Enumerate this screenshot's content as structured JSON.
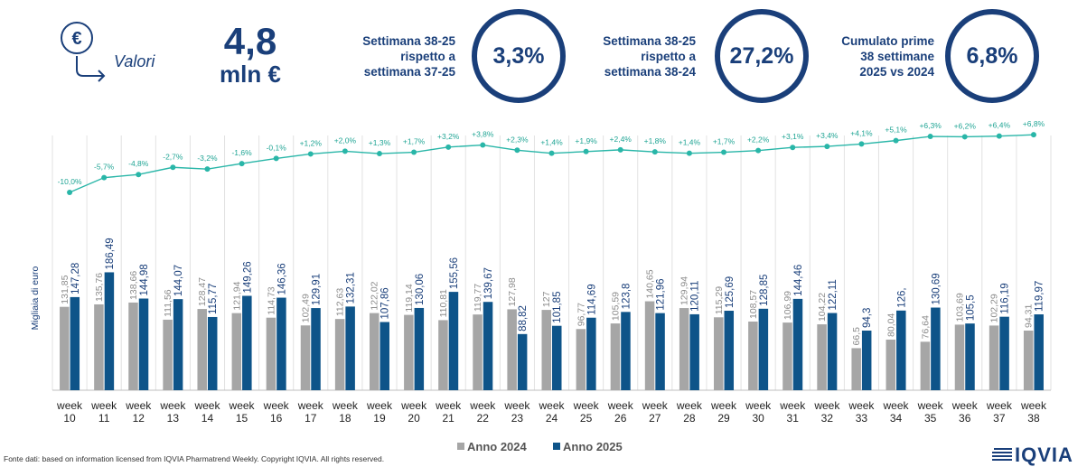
{
  "header": {
    "icon": "euro-down-arrow-icon",
    "valori_label": "Valori",
    "big_value": "4,8",
    "big_unit": "mln €",
    "kpis": [
      {
        "label_lines": [
          "Settimana 38-25",
          "rispetto a",
          "settimana 37-25"
        ],
        "value": "3,3%"
      },
      {
        "label_lines": [
          "Settimana 38-25",
          "rispetto a",
          "settimana 38-24"
        ],
        "value": "27,2%"
      },
      {
        "label_lines": [
          "Cumulato prime",
          "38 settimane",
          "2025 vs 2024"
        ],
        "value": "6,8%"
      }
    ]
  },
  "colors": {
    "primary": "#1a3f7a",
    "bar2024": "#a6a6a6",
    "bar2025": "#0e5489",
    "line": "#29b6a8",
    "line_label": "#21a595"
  },
  "chart_data": {
    "type": "bar",
    "ylabel": "Migliaia di euro",
    "categories": [
      "week\n10",
      "week\n11",
      "week\n12",
      "week\n13",
      "week\n14",
      "week\n15",
      "week\n16",
      "week\n17",
      "week\n18",
      "week\n19",
      "week\n20",
      "week\n21",
      "week\n22",
      "week\n23",
      "week\n24",
      "week\n25",
      "week\n26",
      "week\n27",
      "week\n28",
      "week\n29",
      "week\n30",
      "week\n31",
      "week\n32",
      "week\n33",
      "week\n34",
      "week\n35",
      "week\n36",
      "week\n37",
      "week\n38"
    ],
    "series": [
      {
        "name": "Anno 2024",
        "color": "#a6a6a6",
        "values": [
          131.85,
          135.76,
          138.66,
          111.56,
          128.47,
          121.94,
          114.73,
          102.49,
          112.63,
          122.02,
          119.14,
          110.81,
          119.77,
          127.98,
          127,
          96.77,
          105.59,
          140.65,
          129.94,
          115.29,
          108.57,
          106.99,
          104.22,
          66.5,
          80.04,
          76.64,
          103.69,
          102.29,
          94.31
        ],
        "labels": [
          "131,85",
          "135,76",
          "138,66",
          "111,56",
          "128,47",
          "121,94",
          "114,73",
          "102,49",
          "112,63",
          "122,02",
          "119,14",
          "110,81",
          "119,77",
          "127,98",
          "127",
          "96,77",
          "105,59",
          "140,65",
          "129,94",
          "115,29",
          "108,57",
          "106,99",
          "104,22",
          "66,5",
          "80,04",
          "76,64",
          "103,69",
          "102,29",
          "94,31"
        ]
      },
      {
        "name": "Anno 2025",
        "color": "#0e5489",
        "values": [
          147.28,
          186.49,
          144.98,
          144.07,
          115.77,
          149.26,
          146.36,
          129.91,
          132.31,
          107.86,
          130.06,
          155.56,
          139.67,
          88.82,
          101.85,
          114.69,
          123.8,
          121.96,
          120.11,
          125.69,
          128.85,
          144.46,
          122.11,
          94.3,
          126,
          130.69,
          105.5,
          116.19,
          119.97
        ],
        "labels": [
          "147,28",
          "186,49",
          "144,98",
          "144,07",
          "115,77",
          "149,26",
          "146,36",
          "129,91",
          "132,31",
          "107,86",
          "130,06",
          "155,56",
          "139,67",
          "88,82",
          "101,85",
          "114,69",
          "123,8",
          "121,96",
          "120,11",
          "125,69",
          "128,85",
          "144,46",
          "122,11",
          "94,3",
          "126,",
          "130,69",
          "105,5",
          "116,19",
          "119,97"
        ]
      }
    ],
    "cumulative_growth": {
      "values": [
        -10.0,
        -5.7,
        -4.8,
        -2.7,
        -3.2,
        -1.6,
        -0.1,
        1.2,
        2.0,
        1.3,
        1.7,
        3.2,
        3.8,
        2.3,
        1.4,
        1.9,
        2.4,
        1.8,
        1.4,
        1.7,
        2.2,
        3.1,
        3.4,
        4.1,
        5.1,
        6.3,
        6.2,
        6.4,
        6.8
      ],
      "labels": [
        "-10,0%",
        "-5,7%",
        "-4,8%",
        "-2,7%",
        "-3,2%",
        "-1,6%",
        "-0,1%",
        "+1,2%",
        "+2,0%",
        "+1,3%",
        "+1,7%",
        "+3,2%",
        "+3,8%",
        "+2,3%",
        "+1,4%",
        "+1,9%",
        "+2,4%",
        "+1,8%",
        "+1,4%",
        "+1,7%",
        "+2,2%",
        "+3,1%",
        "+3,4%",
        "+4,1%",
        "+5,1%",
        "+6,3%",
        "+6,2%",
        "+6,4%",
        "+6,8%"
      ]
    },
    "legend_position": "bottom-center",
    "grid": "vertical-separators"
  },
  "footer": {
    "source": "Fonte dati: based on information licensed from IQVIA Pharmatrend Weekly. Copyright IQVIA. All rights reserved.",
    "logo_text": "IQVIA",
    "logo_icon": "iqvia-stripes-icon"
  }
}
